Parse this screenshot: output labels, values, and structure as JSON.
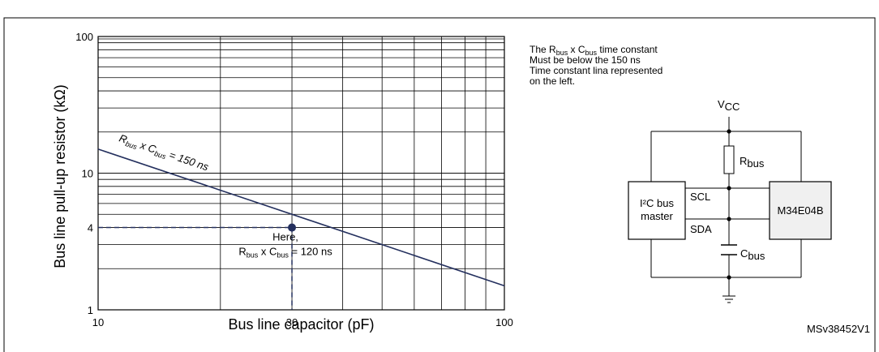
{
  "figure": {
    "code": "MSv38452V1",
    "note_lines": [
      {
        "segments": [
          {
            "t": "The R"
          },
          {
            "t": "bus",
            "sub": true
          },
          {
            "t": " x C"
          },
          {
            "t": "bus",
            "sub": true
          },
          {
            "t": " time constant"
          }
        ]
      },
      {
        "segments": [
          {
            "t": "Must be below the 150 ns"
          }
        ]
      },
      {
        "segments": [
          {
            "t": "Time constant lina represented"
          }
        ]
      },
      {
        "segments": [
          {
            "t": "on the left."
          }
        ]
      }
    ]
  },
  "chart_data": {
    "type": "line",
    "xlabel": "Bus line capacitor (pF)",
    "ylabel": "Bus line pull-up resistor (kΩ)",
    "xscale": "log",
    "yscale": "log",
    "xlim": [
      10,
      100
    ],
    "ylim": [
      1,
      100
    ],
    "xticks": [
      10,
      30,
      100
    ],
    "yticks": [
      1,
      4,
      10,
      100
    ],
    "grid": true,
    "series": [
      {
        "label_parts": [
          {
            "t": "R"
          },
          {
            "t": "bus",
            "sub": true
          },
          {
            "t": " x C"
          },
          {
            "t": "bus",
            "sub": true
          },
          {
            "t": " = 150 ns"
          }
        ],
        "x": [
          10,
          100
        ],
        "y": [
          15,
          1.5
        ],
        "color": "#24305e"
      }
    ],
    "annotation": {
      "x": 30,
      "y": 4,
      "lines": [
        [
          {
            "t": "Here,"
          }
        ],
        [
          {
            "t": "R"
          },
          {
            "t": "bus",
            "sub": true
          },
          {
            "t": " x C"
          },
          {
            "t": "bus",
            "sub": true
          },
          {
            "t": " = 120 ns"
          }
        ]
      ],
      "color": "#24305e"
    }
  },
  "circuit": {
    "vcc": {
      "main": "V",
      "sub": "CC"
    },
    "rbus": {
      "main": "R",
      "sub": "bus"
    },
    "cbus": {
      "main": "C",
      "sub": "bus"
    },
    "master_lines": [
      "I²C bus",
      "master"
    ],
    "slave": "M34E04B",
    "scl": "SCL",
    "sda": "SDA",
    "slave_fill": "#f0f0f0"
  }
}
